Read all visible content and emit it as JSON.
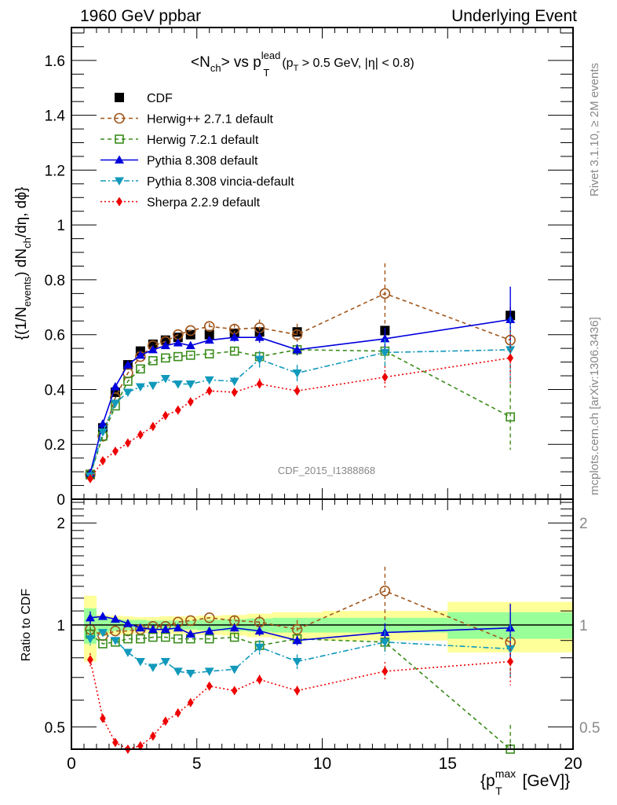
{
  "header": {
    "left": "1960 GeV ppbar",
    "right": "Underlying Event"
  },
  "side_labels": {
    "rivet": "Rivet 3.1.10, ≥ 2M events",
    "mcplots": "mcplots.cern.ch [arXiv:1306.3436]"
  },
  "watermark": "CDF_2015_I1388868",
  "chart_data": [
    {
      "type": "line",
      "panel": "main",
      "title": "<Nch> vs pT lead (pT > 0.5 GeV, |η| < 0.8)",
      "title_parts": {
        "main": "<N",
        "sub1": "ch",
        "mid": "> vs p",
        "sup": "lead",
        "sub2": "T",
        "rest": "(p",
        "sub3": "T",
        "tail": " > 0.5 GeV, |η| < 0.8)"
      },
      "xlabel": "{p_T^max [GeV]}",
      "ylabel": "{(1/N_events) dN_ch/dη, dϕ}",
      "ylabel_parts": {
        "a": "{(1/N",
        "b": "events",
        "c": ") dN",
        "d": "ch",
        "e": "/dη, dϕ}"
      },
      "xlim": [
        0,
        20
      ],
      "ylim": [
        0,
        1.72
      ],
      "xticks": [
        0,
        5,
        10,
        15,
        20
      ],
      "yticks": [
        0,
        0.2,
        0.4,
        0.6,
        0.8,
        1,
        1.2,
        1.4,
        1.6
      ],
      "ytick_labels": [
        "0",
        "0.2",
        "0.4",
        "0.6",
        "0.8",
        "1",
        "1.2",
        "1.4",
        "1.6"
      ],
      "legend_position": "top-left",
      "x": [
        0.75,
        1.25,
        1.75,
        2.25,
        2.75,
        3.25,
        3.75,
        4.25,
        4.75,
        5.5,
        6.5,
        7.5,
        9,
        12.5,
        17.5
      ],
      "series": [
        {
          "name": "CDF",
          "color": "#000000",
          "marker": "square-filled",
          "line": "none",
          "values": [
            0.09,
            0.26,
            0.39,
            0.49,
            0.54,
            0.565,
            0.58,
            0.59,
            0.6,
            0.6,
            0.605,
            0.61,
            0.61,
            0.615,
            0.67
          ],
          "errors": [
            0.005,
            0.005,
            0.006,
            0.006,
            0.007,
            0.007,
            0.007,
            0.008,
            0.008,
            0.008,
            0.01,
            0.01,
            0.012,
            0.015,
            0.03
          ]
        },
        {
          "name": "Herwig++ 2.7.1 default",
          "color": "#a0561c",
          "marker": "circle-open",
          "line": "dashed",
          "values": [
            0.09,
            0.23,
            0.37,
            0.46,
            0.52,
            0.56,
            0.575,
            0.6,
            0.615,
            0.63,
            0.62,
            0.625,
            0.6,
            0.75,
            0.58
          ],
          "errors": [
            0.005,
            0.005,
            0.006,
            0.006,
            0.006,
            0.007,
            0.008,
            0.008,
            0.01,
            0.012,
            0.02,
            0.03,
            0.04,
            0.11,
            0.12
          ]
        },
        {
          "name": "Herwig 7.2.1 default",
          "color": "#3a8c1c",
          "marker": "square-open",
          "line": "dashed",
          "values": [
            0.09,
            0.23,
            0.34,
            0.43,
            0.475,
            0.505,
            0.515,
            0.52,
            0.525,
            0.53,
            0.54,
            0.52,
            0.545,
            0.54,
            0.3
          ],
          "errors": [
            0.005,
            0.005,
            0.006,
            0.006,
            0.006,
            0.007,
            0.008,
            0.008,
            0.01,
            0.01,
            0.015,
            0.02,
            0.02,
            0.04,
            0.12
          ]
        },
        {
          "name": "Pythia 8.308 default",
          "color": "#0000dd",
          "marker": "triangle-up-filled",
          "line": "solid",
          "values": [
            0.095,
            0.275,
            0.41,
            0.49,
            0.525,
            0.545,
            0.56,
            0.57,
            0.56,
            0.58,
            0.59,
            0.59,
            0.545,
            0.585,
            0.655
          ],
          "errors": [
            0.004,
            0.005,
            0.006,
            0.006,
            0.007,
            0.007,
            0.008,
            0.008,
            0.01,
            0.01,
            0.015,
            0.02,
            0.02,
            0.04,
            0.12
          ]
        },
        {
          "name": "Pythia 8.308 vincia-default",
          "color": "#1199bb",
          "marker": "triangle-down-filled",
          "line": "dashdot",
          "values": [
            0.085,
            0.245,
            0.35,
            0.39,
            0.41,
            0.415,
            0.44,
            0.42,
            0.42,
            0.435,
            0.43,
            0.51,
            0.46,
            0.535,
            0.545
          ],
          "errors": [
            0.004,
            0.005,
            0.006,
            0.006,
            0.007,
            0.007,
            0.008,
            0.008,
            0.01,
            0.01,
            0.015,
            0.03,
            0.03,
            0.05,
            0.12
          ]
        },
        {
          "name": "Sherpa 2.2.9 default",
          "color": "#ee0000",
          "marker": "diamond-filled",
          "line": "dotted",
          "values": [
            0.075,
            0.14,
            0.175,
            0.205,
            0.235,
            0.265,
            0.305,
            0.325,
            0.355,
            0.395,
            0.39,
            0.42,
            0.395,
            0.445,
            0.515
          ],
          "errors": [
            0.004,
            0.004,
            0.005,
            0.005,
            0.006,
            0.006,
            0.007,
            0.008,
            0.008,
            0.01,
            0.012,
            0.02,
            0.02,
            0.04,
            0.1
          ]
        }
      ]
    },
    {
      "type": "line",
      "panel": "ratio",
      "ylabel": "Ratio to CDF",
      "yscale": "log",
      "ylim": [
        0.43,
        2.35
      ],
      "yticks": [
        0.5,
        1,
        2
      ],
      "ytick_labels": [
        "0.5",
        "1",
        "2"
      ],
      "xlim": [
        0,
        20
      ],
      "xticks": [
        0,
        5,
        10,
        15,
        20
      ],
      "xtick_labels": [
        "0",
        "5",
        "10",
        "15",
        "20"
      ],
      "x": [
        0.75,
        1.25,
        1.75,
        2.25,
        2.75,
        3.25,
        3.75,
        4.25,
        4.75,
        5.5,
        6.5,
        7.5,
        9,
        12.5,
        17.5
      ],
      "bins": [
        [
          0.5,
          1.0
        ],
        [
          1.0,
          1.5
        ],
        [
          1.5,
          2.0
        ],
        [
          2.0,
          2.5
        ],
        [
          2.5,
          3.0
        ],
        [
          3.0,
          3.5
        ],
        [
          3.5,
          4.0
        ],
        [
          4.0,
          4.5
        ],
        [
          4.5,
          5.0
        ],
        [
          5.0,
          6.0
        ],
        [
          6.0,
          7.0
        ],
        [
          7.0,
          8.0
        ],
        [
          8.0,
          10.0
        ],
        [
          10.0,
          15.0
        ],
        [
          15.0,
          20.0
        ]
      ],
      "band_stat": [
        0.12,
        0.05,
        0.04,
        0.035,
        0.035,
        0.03,
        0.03,
        0.03,
        0.03,
        0.035,
        0.04,
        0.045,
        0.05,
        0.05,
        0.09
      ],
      "band_total": [
        0.22,
        0.07,
        0.065,
        0.06,
        0.055,
        0.055,
        0.06,
        0.06,
        0.06,
        0.065,
        0.07,
        0.08,
        0.09,
        0.1,
        0.17
      ],
      "band_colors": {
        "stat": "#99ff99",
        "total": "#ffff99"
      },
      "series": [
        {
          "name": "Herwig++ 2.7.1 default",
          "color": "#a0561c",
          "marker": "circle-open",
          "line": "dashed",
          "values": [
            0.97,
            0.93,
            0.96,
            0.96,
            0.97,
            0.99,
            0.99,
            1.02,
            1.03,
            1.05,
            1.03,
            1.02,
            0.97,
            1.26,
            0.89
          ]
        },
        {
          "name": "Herwig 7.2.1 default",
          "color": "#3a8c1c",
          "marker": "square-open",
          "line": "dashed",
          "values": [
            0.94,
            0.88,
            0.89,
            0.91,
            0.91,
            0.92,
            0.92,
            0.91,
            0.91,
            0.91,
            0.92,
            0.87,
            0.91,
            0.89,
            0.43
          ]
        },
        {
          "name": "Pythia 8.308 default",
          "color": "#0000dd",
          "marker": "triangle-up-filled",
          "line": "solid",
          "values": [
            1.05,
            1.06,
            1.04,
            1.01,
            0.98,
            0.97,
            0.97,
            0.98,
            0.94,
            0.96,
            0.98,
            0.96,
            0.9,
            0.95,
            0.98
          ]
        },
        {
          "name": "Pythia 8.308 vincia-default",
          "color": "#1199bb",
          "marker": "triangle-down-filled",
          "line": "dashdot",
          "values": [
            0.91,
            0.95,
            0.9,
            0.83,
            0.78,
            0.75,
            0.78,
            0.73,
            0.72,
            0.73,
            0.74,
            0.86,
            0.78,
            0.89,
            0.85
          ]
        },
        {
          "name": "Sherpa 2.2.9 default",
          "color": "#ee0000",
          "marker": "diamond-filled",
          "line": "dotted",
          "values": [
            0.79,
            0.53,
            0.45,
            0.43,
            0.44,
            0.47,
            0.52,
            0.55,
            0.59,
            0.66,
            0.64,
            0.69,
            0.64,
            0.73,
            0.78
          ]
        }
      ]
    }
  ]
}
